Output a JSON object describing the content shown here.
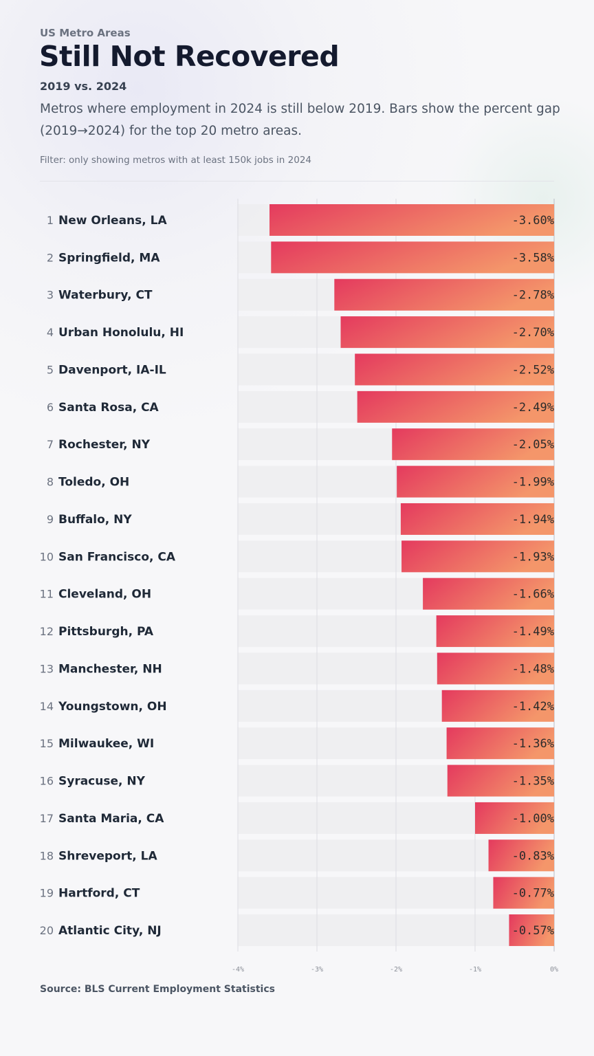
{
  "header": {
    "kicker": "US Metro Areas",
    "title": "Still Not Recovered",
    "subtitle": "2019 vs. 2024",
    "description": "Metros where employment in 2024 is still below 2019. Bars show the percent gap (2019→2024) for the top 20 metro areas.",
    "filter": "Filter: only showing metros with at least 150k jobs in 2024"
  },
  "footer": {
    "source": "Source: BLS Current Employment Statistics"
  },
  "colors": {
    "bar_start": "#e43a5e",
    "bar_end": "#f4966a",
    "track": "#ededf0"
  },
  "chart_data": {
    "type": "bar",
    "orientation": "horizontal",
    "categories": [
      "New Orleans, LA",
      "Springfield, MA",
      "Waterbury, CT",
      "Urban Honolulu, HI",
      "Davenport, IA-IL",
      "Santa Rosa, CA",
      "Rochester, NY",
      "Toledo, OH",
      "Buffalo, NY",
      "San Francisco, CA",
      "Cleveland, OH",
      "Pittsburgh, PA",
      "Manchester, NH",
      "Youngstown, OH",
      "Milwaukee, WI",
      "Syracuse, NY",
      "Santa Maria, CA",
      "Shreveport, LA",
      "Hartford, CT",
      "Atlantic City, NJ"
    ],
    "ranks": [
      "1",
      "2",
      "3",
      "4",
      "5",
      "6",
      "7",
      "8",
      "9",
      "10",
      "11",
      "12",
      "13",
      "14",
      "15",
      "16",
      "17",
      "18",
      "19",
      "20"
    ],
    "values": [
      -3.6,
      -3.58,
      -2.78,
      -2.7,
      -2.52,
      -2.49,
      -2.05,
      -1.99,
      -1.94,
      -1.93,
      -1.66,
      -1.49,
      -1.48,
      -1.42,
      -1.36,
      -1.35,
      -1.0,
      -0.83,
      -0.77,
      -0.57
    ],
    "value_labels": [
      "-3.60%",
      "-3.58%",
      "-2.78%",
      "-2.70%",
      "-2.52%",
      "-2.49%",
      "-2.05%",
      "-1.99%",
      "-1.94%",
      "-1.93%",
      "-1.66%",
      "-1.49%",
      "-1.48%",
      "-1.42%",
      "-1.36%",
      "-1.35%",
      "-1.00%",
      "-0.83%",
      "-0.77%",
      "-0.57%"
    ],
    "xlim": [
      -4,
      0
    ],
    "xticks": [
      -4,
      -3,
      -2,
      -1,
      0
    ],
    "xtick_labels": [
      "-4%",
      "-3%",
      "-2%",
      "-1%",
      "0%"
    ],
    "grid": true
  }
}
